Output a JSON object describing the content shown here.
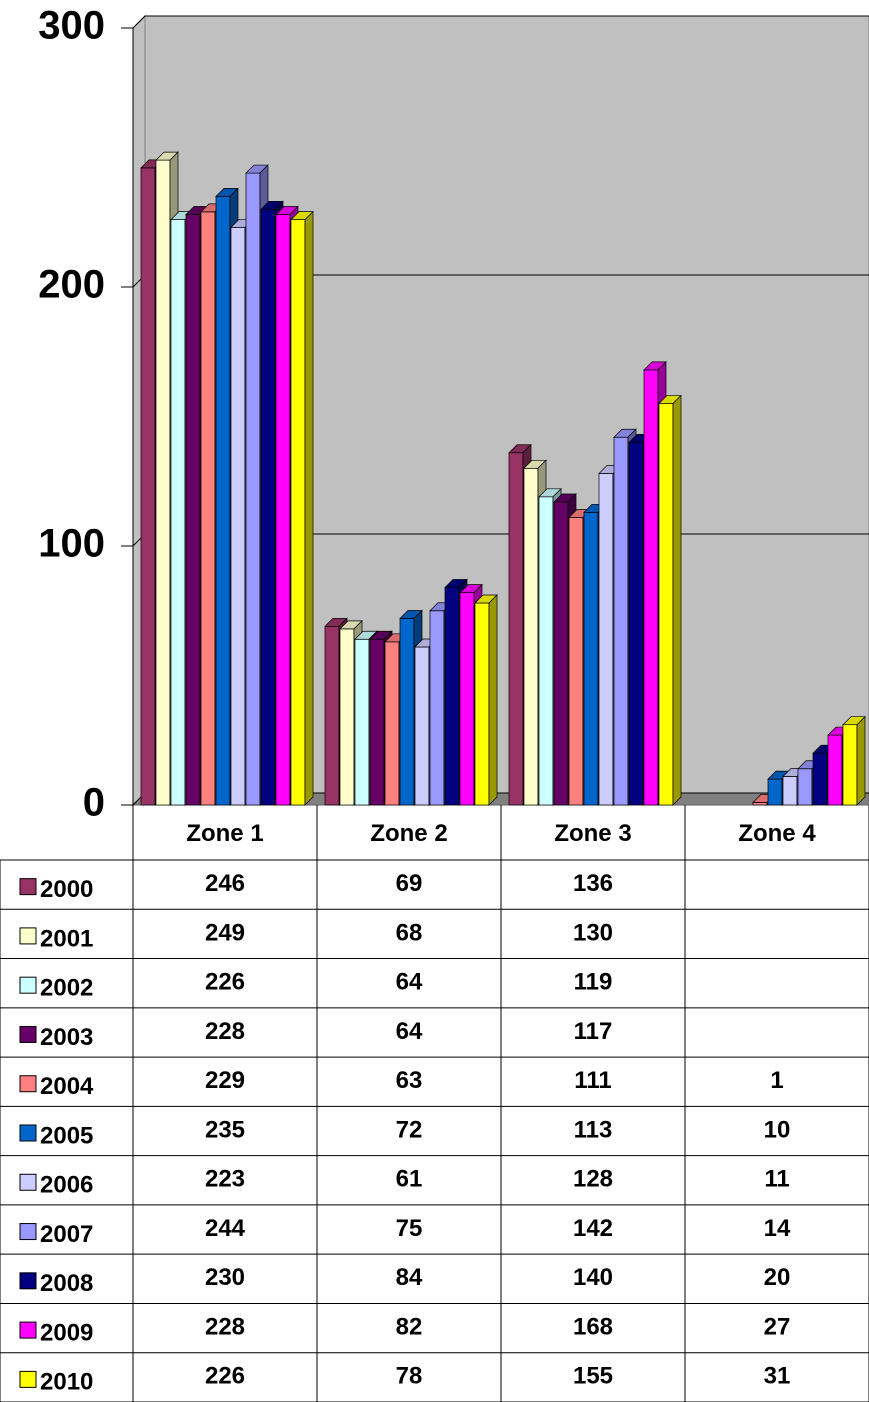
{
  "chart_data": {
    "type": "bar3d",
    "categories": [
      "Zone 1",
      "Zone 2",
      "Zone 3",
      "Zone 4"
    ],
    "series": [
      {
        "name": "2000",
        "color": "#993366",
        "values": [
          246,
          69,
          136,
          null
        ]
      },
      {
        "name": "2001",
        "color": "#FFFFCC",
        "values": [
          249,
          68,
          130,
          null
        ]
      },
      {
        "name": "2002",
        "color": "#CCFFFF",
        "values": [
          226,
          64,
          119,
          null
        ]
      },
      {
        "name": "2003",
        "color": "#660066",
        "values": [
          228,
          64,
          117,
          null
        ]
      },
      {
        "name": "2004",
        "color": "#FF8080",
        "values": [
          229,
          63,
          111,
          1
        ]
      },
      {
        "name": "2005",
        "color": "#0066CC",
        "values": [
          235,
          72,
          113,
          10
        ]
      },
      {
        "name": "2006",
        "color": "#CCCCFF",
        "values": [
          223,
          61,
          128,
          11
        ]
      },
      {
        "name": "2007",
        "color": "#9999FF",
        "values": [
          244,
          75,
          142,
          14
        ]
      },
      {
        "name": "2008",
        "color": "#000080",
        "values": [
          230,
          84,
          140,
          20
        ]
      },
      {
        "name": "2009",
        "color": "#FF00FF",
        "values": [
          228,
          82,
          168,
          27
        ]
      },
      {
        "name": "2010",
        "color": "#FFFF00",
        "values": [
          226,
          78,
          155,
          31
        ]
      }
    ],
    "ylim": [
      0,
      300
    ],
    "yticks": [
      0,
      100,
      200,
      300
    ],
    "grid": true,
    "data_table": true
  }
}
